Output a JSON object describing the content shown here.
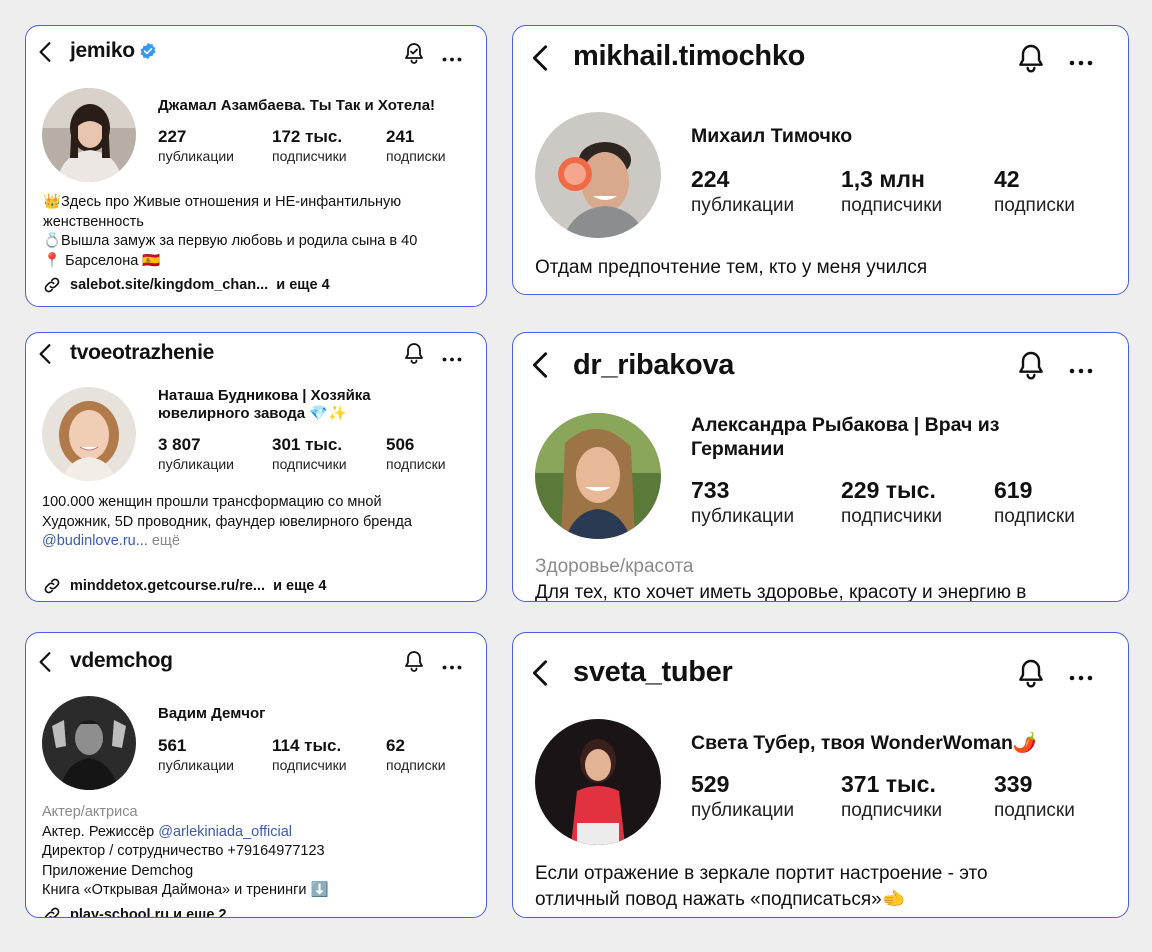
{
  "cards": [
    {
      "username": "jemiko",
      "verified": true,
      "full_name": "Джамал Азамбаева. Ты Так и Хотела!",
      "stats": {
        "posts": {
          "value": "227",
          "label": "публикации"
        },
        "followers": {
          "value": "172 тыс.",
          "label": "подписчики"
        },
        "following": {
          "value": "241",
          "label": "подписки"
        }
      },
      "bio": [
        "👑Здесь про Живые отношения и НЕ-инфантильную",
        "женственность",
        "💍Вышла замуж за первую любовь и родила сына в 40",
        "📍 Барселона 🇪🇸"
      ],
      "link": "salebot.site/kingdom_chan...",
      "link_more": "и еще 4"
    },
    {
      "username": "mikhail.timochko",
      "full_name": "Михаил Тимочко",
      "stats": {
        "posts": {
          "value": "224",
          "label": "публикации"
        },
        "followers": {
          "value": "1,3 млн",
          "label": "подписчики"
        },
        "following": {
          "value": "42",
          "label": "подписки"
        }
      },
      "bio": [
        "Отдам предпочтение тем, кто у меня учился"
      ]
    },
    {
      "username": "tvoeotrazhenie",
      "full_name_lines": [
        "Наташа Будникова | Хозяйка",
        "ювелирного завода 💎✨"
      ],
      "stats": {
        "posts": {
          "value": "3 807",
          "label": "публикации"
        },
        "followers": {
          "value": "301 тыс.",
          "label": "подписчики"
        },
        "following": {
          "value": "506",
          "label": "подписки"
        }
      },
      "bio": [
        "100.000 женщин прошли трансформацию со мной",
        "",
        "Художник, 5D проводник, фаундер ювелирного бренда"
      ],
      "mention": "@budinlove.ru...",
      "more": "ещё",
      "link": "minddetox.getcourse.ru/re...",
      "link_more": "и еще 4"
    },
    {
      "username": "dr_ribakova",
      "full_name_lines": [
        "Александра Рыбакова | Врач из",
        "Германии"
      ],
      "stats": {
        "posts": {
          "value": "733",
          "label": "публикации"
        },
        "followers": {
          "value": "229 тыс.",
          "label": "подписчики"
        },
        "following": {
          "value": "619",
          "label": "подписки"
        }
      },
      "category": "Здоровье/красота",
      "bio": [
        "Для тех, кто хочет иметь здоровье, красоту и энергию в"
      ]
    },
    {
      "username": "vdemchog",
      "full_name": "Вадим Демчог",
      "stats": {
        "posts": {
          "value": "561",
          "label": "публикации"
        },
        "followers": {
          "value": "114 тыс.",
          "label": "подписчики"
        },
        "following": {
          "value": "62",
          "label": "подписки"
        }
      },
      "category": "Актер/актриса",
      "bio_prefix": "Актер. Режиссёр ",
      "mention": "@arlekiniada_official",
      "bio": [
        "Директор / сотрудничество +79164977123",
        "Приложение Demchog",
        "Книга «Открывая Даймона» и тренинги ⬇️"
      ],
      "link": "play-school.ru",
      "link_more": "и еще 2"
    },
    {
      "username": "sveta_tuber",
      "full_name": "Света Тубер, твоя WonderWoman🌶️",
      "stats": {
        "posts": {
          "value": "529",
          "label": "публикации"
        },
        "followers": {
          "value": "371 тыс.",
          "label": "подписчики"
        },
        "following": {
          "value": "339",
          "label": "подписки"
        }
      },
      "bio": [
        "Если отражение в зеркале портит настроение - это",
        "отличный повод нажать «подписаться»🫲"
      ]
    }
  ],
  "colors": {
    "border": "#4a5ee8",
    "mention": "#3b5bb5",
    "verified": "#3897f0",
    "muted": "#8a8a8a"
  },
  "icons": [
    "back-chevron-icon",
    "bell-icon",
    "more-icon",
    "link-icon",
    "verified-icon"
  ]
}
